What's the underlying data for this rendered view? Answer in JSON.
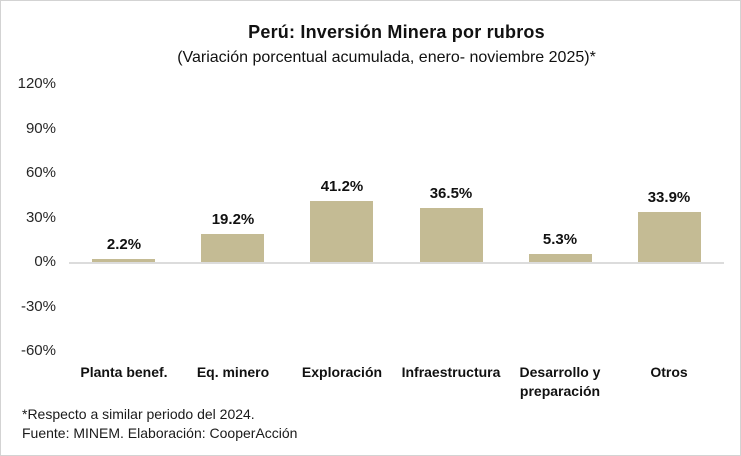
{
  "chart_data": {
    "type": "bar",
    "title": "Perú: Inversión Minera por rubros",
    "subtitle": "(Variación porcentual acumulada, enero- noviembre 2025)*",
    "categories": [
      "Planta benef.",
      "Eq. minero",
      "Exploración",
      "Infraestructura",
      "Desarrollo y preparación",
      "Otros"
    ],
    "values": [
      2.2,
      19.2,
      41.2,
      36.5,
      5.3,
      33.9
    ],
    "value_labels": [
      "2.2%",
      "19.2%",
      "41.2%",
      "36.5%",
      "5.3%",
      "33.9%"
    ],
    "yticks": [
      {
        "label": "120%",
        "value": 120
      },
      {
        "label": "90%",
        "value": 90
      },
      {
        "label": "60%",
        "value": 60
      },
      {
        "label": "30%",
        "value": 30
      },
      {
        "label": "0%",
        "value": 0
      },
      {
        "label": "-30%",
        "value": -30
      },
      {
        "label": "-60%",
        "value": -60
      }
    ],
    "ylim": [
      -60,
      120
    ],
    "xlabel": "",
    "ylabel": "",
    "grid": false,
    "legend": false,
    "bar_color": "#C4BB94",
    "baseline_color": "#DCDCDC"
  },
  "footnotes": {
    "line1": "*Respecto a similar periodo del 2024.",
    "line2": "Fuente: MINEM. Elaboración: CooperAcción"
  }
}
